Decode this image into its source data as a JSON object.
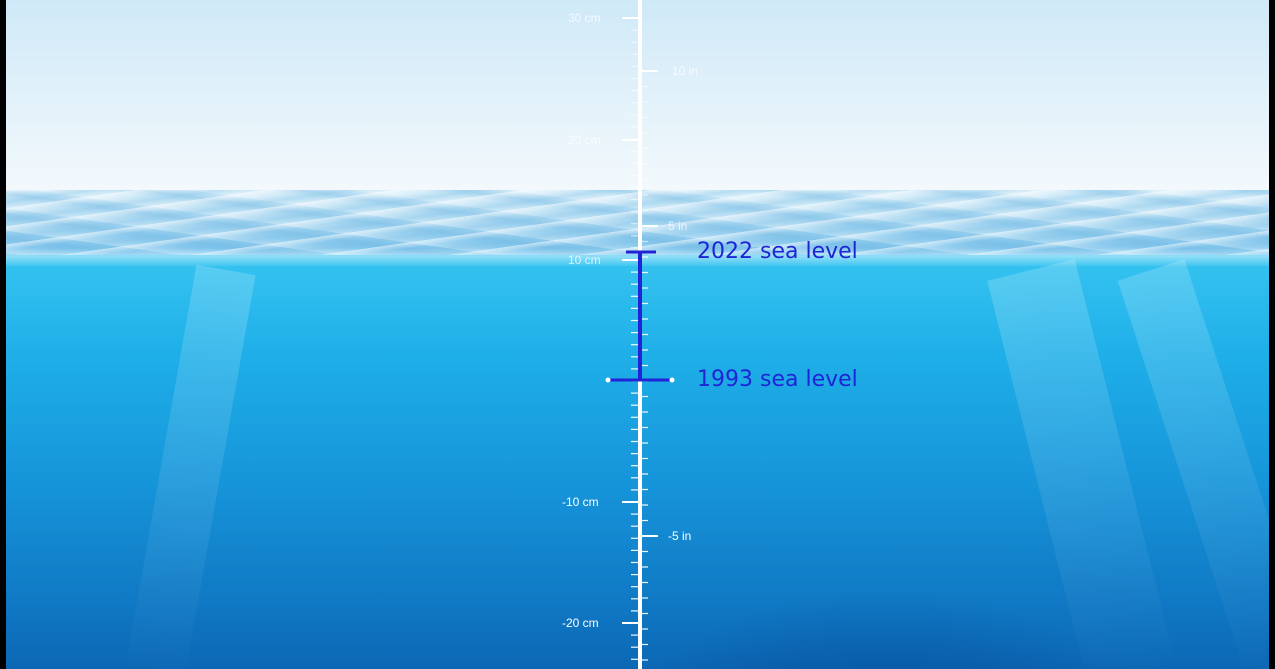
{
  "scale": {
    "cm_labels": [
      "30 cm",
      "20 cm",
      "10 cm",
      "-10 cm",
      "-20 cm"
    ],
    "in_labels": [
      "10 in",
      "5 in",
      "-5 in"
    ]
  },
  "levels": {
    "upper_label": "2022 sea level",
    "lower_label": "1993 sea level",
    "color": "#1f24d6"
  },
  "colors": {
    "scale_line": "#ffffff",
    "water": "#1694d9",
    "sky": "#e6f3fa"
  }
}
